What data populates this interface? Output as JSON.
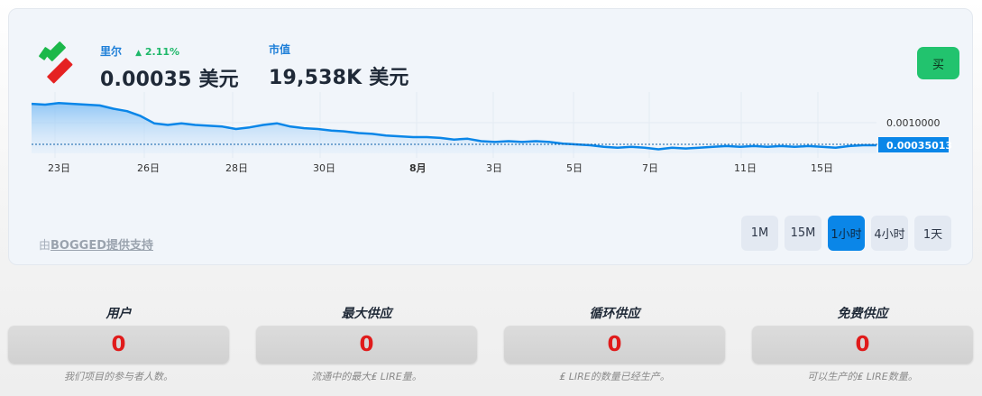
{
  "widget": {
    "token_label": "里尔",
    "change": "2.11%",
    "price_value": "0.00035 美元",
    "mcap_label": "市值",
    "mcap_value": "19,538K 美元",
    "buy_label": "买",
    "powered_prefix": "由",
    "powered_link": "BOGGED提供支持",
    "colors": {
      "accent": "#0a86e8",
      "buy": "#22c36e",
      "change_up": "#1fb86a",
      "zero_value": "#e01b1b"
    }
  },
  "timeframes": [
    {
      "label": "1M",
      "active": false
    },
    {
      "label": "15M",
      "active": false
    },
    {
      "label": "1小时",
      "active": true
    },
    {
      "label": "4小时",
      "active": false
    },
    {
      "label": "1天",
      "active": false
    }
  ],
  "chart_data": {
    "type": "area",
    "x_ticks": [
      "23日",
      "26日",
      "28日",
      "30日",
      "8月",
      "3日",
      "5日",
      "7日",
      "11日",
      "15日"
    ],
    "y_ticks": [
      "0.0010000"
    ],
    "current_price_label": "0.00035013",
    "series": [
      {
        "values": [
          0.00086,
          0.00085,
          0.00087,
          0.00086,
          0.00085,
          0.00084,
          0.0008,
          0.00077,
          0.00071,
          0.00062,
          0.0006,
          0.00062,
          0.0006,
          0.00059,
          0.00058,
          0.00055,
          0.00057,
          0.0006,
          0.00062,
          0.00058,
          0.00056,
          0.00055,
          0.00053,
          0.00052,
          0.0005,
          0.00049,
          0.00047,
          0.00046,
          0.00045,
          0.00045,
          0.00044,
          0.00042,
          0.00043,
          0.0004,
          0.00039,
          0.0004,
          0.00039,
          0.0004,
          0.00039,
          0.00037,
          0.00036,
          0.00035,
          0.00033,
          0.00032,
          0.00033,
          0.00032,
          0.0003,
          0.00032,
          0.00031,
          0.00032,
          0.00033,
          0.00034,
          0.00033,
          0.00034,
          0.00033,
          0.00034,
          0.00033,
          0.00034,
          0.00033,
          0.00032,
          0.00034,
          0.00035,
          0.00035
        ]
      }
    ],
    "ylim": [
      0.00025,
      0.00095
    ]
  },
  "metrics": [
    {
      "title": "用户",
      "value": "0",
      "desc": "我们项目的参与者人数。"
    },
    {
      "title": "最大供应",
      "value": "0",
      "desc": "流通中的最大₤ LIRE量。"
    },
    {
      "title": "循环供应",
      "value": "0",
      "desc": "₤ LIRE的数量已经生产。"
    },
    {
      "title": "免费供应",
      "value": "0",
      "desc": "可以生产的₤ LIRE数量。"
    }
  ]
}
